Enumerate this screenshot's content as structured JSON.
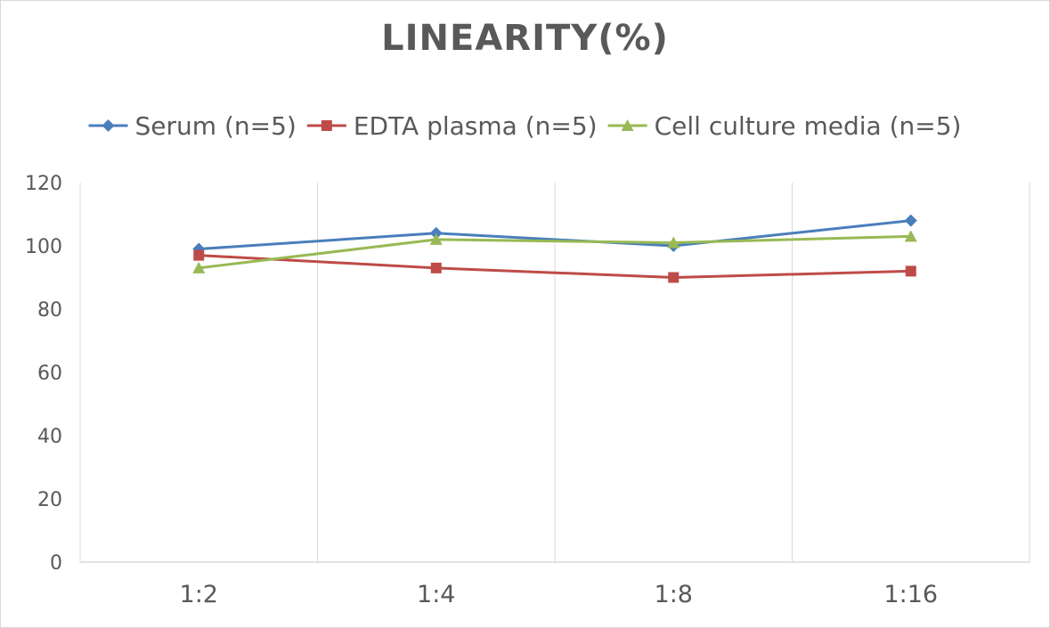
{
  "chart_data": {
    "type": "line",
    "title": "LINEARITY(%)",
    "categories": [
      "1:2",
      "1:4",
      "1:8",
      "1:16"
    ],
    "series": [
      {
        "name": "Serum (n=5)",
        "values": [
          99,
          104,
          100,
          108
        ],
        "color": "#4a7ebb",
        "marker": "diamond"
      },
      {
        "name": "EDTA plasma (n=5)",
        "values": [
          97,
          93,
          90,
          92
        ],
        "color": "#be4b48",
        "marker": "square"
      },
      {
        "name": "Cell culture media (n=5)",
        "values": [
          93,
          102,
          101,
          103
        ],
        "color": "#98b954",
        "marker": "triangle"
      }
    ],
    "ylim": [
      0,
      120
    ],
    "yticks": [
      "0",
      "20",
      "40",
      "60",
      "80",
      "100",
      "120"
    ],
    "xlabel": "",
    "ylabel": "",
    "grid": "vertical",
    "legend": "top"
  }
}
